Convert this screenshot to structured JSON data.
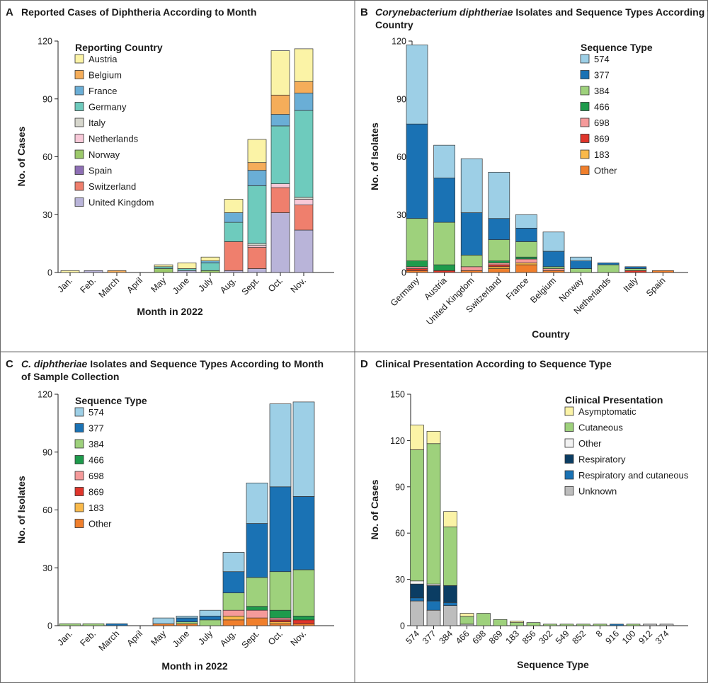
{
  "panels": {
    "A": {
      "letter": "A",
      "title": "Reported Cases of Diphtheria According to Month"
    },
    "B": {
      "letter": "B",
      "title_italic": "Corynebacterium diphtheriae",
      "title_rest": " Isolates and Sequence Types According to",
      "title_line2": "Country"
    },
    "C": {
      "letter": "C",
      "title_italic": "C. diphtheriae",
      "title_rest": " Isolates and Sequence Types According to Month",
      "title_line2": "of Sample Collection"
    },
    "D": {
      "letter": "D",
      "title": "Clinical Presentation According to Sequence Type"
    }
  },
  "chart_data": [
    {
      "id": "A",
      "type": "bar",
      "stacked": true,
      "title": "Reported Cases of Diphtheria According to Month",
      "xlabel": "Month in 2022",
      "ylabel": "No. of Cases",
      "ylim": [
        0,
        120
      ],
      "yticks": [
        0,
        30,
        60,
        90,
        120
      ],
      "legend_title": "Reporting Country",
      "categories": [
        "Jan.",
        "Feb.",
        "March",
        "April",
        "May",
        "June",
        "July",
        "Aug.",
        "Sept.",
        "Oct.",
        "Nov."
      ],
      "series": [
        {
          "name": "United Kingdom",
          "color": "#b9b4d9",
          "values": [
            0,
            1,
            0,
            0,
            0,
            1,
            0,
            1,
            2,
            31,
            22
          ]
        },
        {
          "name": "Switzerland",
          "color": "#ef7f6d",
          "values": [
            0,
            0,
            0,
            0,
            0,
            0,
            0,
            15,
            11,
            13,
            13
          ]
        },
        {
          "name": "Spain",
          "color": "#8e6fb5",
          "values": [
            0,
            0,
            0,
            0,
            0,
            0,
            0,
            0,
            0,
            0,
            0
          ]
        },
        {
          "name": "Norway",
          "color": "#9cc96b",
          "values": [
            0,
            0,
            0,
            0,
            2,
            0,
            1,
            0,
            0,
            0,
            0
          ]
        },
        {
          "name": "Netherlands",
          "color": "#f8c9d8",
          "values": [
            0,
            0,
            0,
            0,
            0,
            0,
            0,
            0,
            1,
            2,
            3
          ]
        },
        {
          "name": "Italy",
          "color": "#d6d6cc",
          "values": [
            0,
            0,
            0,
            0,
            0,
            0,
            0,
            0,
            1,
            0,
            1
          ]
        },
        {
          "name": "Germany",
          "color": "#6ecbbd",
          "values": [
            0,
            0,
            0,
            0,
            1,
            1,
            4,
            10,
            30,
            30,
            45
          ]
        },
        {
          "name": "France",
          "color": "#6aaed6",
          "values": [
            0,
            0,
            0,
            0,
            0,
            0,
            1,
            5,
            8,
            6,
            9
          ]
        },
        {
          "name": "Belgium",
          "color": "#f5ad5a",
          "values": [
            0,
            0,
            1,
            0,
            0,
            0,
            0,
            0,
            4,
            10,
            6
          ]
        },
        {
          "name": "Austria",
          "color": "#fbf3a6",
          "values": [
            1,
            0,
            0,
            0,
            1,
            3,
            2,
            7,
            12,
            23,
            17
          ]
        }
      ]
    },
    {
      "id": "B",
      "type": "bar",
      "stacked": true,
      "title": "Corynebacterium diphtheriae Isolates and Sequence Types According to Country",
      "xlabel": "Country",
      "ylabel": "No. of Isolates",
      "ylim": [
        0,
        120
      ],
      "yticks": [
        0,
        30,
        60,
        90,
        120
      ],
      "legend_title": "Sequence Type",
      "categories": [
        "Germany",
        "Austria",
        "United Kingdom",
        "Switzerland",
        "France",
        "Belgium",
        "Norway",
        "Netherlands",
        "Italy",
        "Spain"
      ],
      "series": [
        {
          "name": "Other",
          "color": "#f07f2c",
          "values": [
            1,
            0,
            1,
            2,
            4,
            1,
            0,
            0,
            0,
            1
          ]
        },
        {
          "name": "183",
          "color": "#f9b94a",
          "values": [
            0,
            0,
            0,
            1,
            1,
            0,
            0,
            0,
            0,
            0
          ]
        },
        {
          "name": "869",
          "color": "#e0352b",
          "values": [
            1,
            1,
            0,
            1,
            0,
            0,
            0,
            0,
            1,
            0
          ]
        },
        {
          "name": "698",
          "color": "#f59a9a",
          "values": [
            1,
            0,
            2,
            1,
            2,
            1,
            0,
            0,
            0,
            0
          ]
        },
        {
          "name": "466",
          "color": "#1e9b4c",
          "values": [
            3,
            3,
            0,
            1,
            1,
            0,
            0,
            0,
            0,
            0
          ]
        },
        {
          "name": "384",
          "color": "#9ed17c",
          "values": [
            22,
            22,
            6,
            11,
            8,
            1,
            2,
            4,
            1,
            0
          ]
        },
        {
          "name": "377",
          "color": "#1a72b4",
          "values": [
            49,
            23,
            22,
            11,
            7,
            8,
            4,
            1,
            1,
            0
          ]
        },
        {
          "name": "574",
          "color": "#9dcfe6",
          "values": [
            41,
            17,
            28,
            24,
            7,
            10,
            2,
            0,
            0,
            0
          ]
        }
      ]
    },
    {
      "id": "C",
      "type": "bar",
      "stacked": true,
      "title": "C. diphtheriae Isolates and Sequence Types According to Month of Sample Collection",
      "xlabel": "Month in 2022",
      "ylabel": "No. of Isolates",
      "ylim": [
        0,
        120
      ],
      "yticks": [
        0,
        30,
        60,
        90,
        120
      ],
      "legend_title": "Sequence Type",
      "categories": [
        "Jan.",
        "Feb.",
        "March",
        "April",
        "May",
        "June",
        "July",
        "Aug.",
        "Sept.",
        "Oct.",
        "Nov."
      ],
      "series": [
        {
          "name": "Other",
          "color": "#f07f2c",
          "values": [
            0,
            0,
            0,
            0,
            1,
            1,
            0,
            3,
            4,
            1,
            1
          ]
        },
        {
          "name": "183",
          "color": "#f9b94a",
          "values": [
            0,
            0,
            0,
            0,
            0,
            0,
            0,
            2,
            0,
            1,
            0
          ]
        },
        {
          "name": "869",
          "color": "#e0352b",
          "values": [
            0,
            0,
            0,
            0,
            0,
            0,
            0,
            0,
            0,
            1,
            2
          ]
        },
        {
          "name": "698",
          "color": "#f59a9a",
          "values": [
            0,
            0,
            0,
            0,
            0,
            0,
            0,
            3,
            4,
            1,
            0
          ]
        },
        {
          "name": "466",
          "color": "#1e9b4c",
          "values": [
            0,
            0,
            0,
            0,
            0,
            0,
            0,
            0,
            2,
            4,
            2
          ]
        },
        {
          "name": "384",
          "color": "#9ed17c",
          "values": [
            1,
            1,
            0,
            0,
            0,
            1,
            3,
            9,
            15,
            20,
            24
          ]
        },
        {
          "name": "377",
          "color": "#1a72b4",
          "values": [
            0,
            0,
            1,
            0,
            0,
            2,
            2,
            11,
            28,
            44,
            38
          ]
        },
        {
          "name": "574",
          "color": "#9dcfe6",
          "values": [
            0,
            0,
            0,
            0,
            3,
            1,
            3,
            10,
            21,
            43,
            49
          ]
        }
      ]
    },
    {
      "id": "D",
      "type": "bar",
      "stacked": true,
      "title": "Clinical Presentation According to Sequence Type",
      "xlabel": "Sequence Type",
      "ylabel": "No. of Cases",
      "ylim": [
        0,
        150
      ],
      "yticks": [
        0,
        30,
        60,
        90,
        120,
        150
      ],
      "legend_title": "Clinical Presentation",
      "categories": [
        "574",
        "377",
        "384",
        "466",
        "698",
        "869",
        "183",
        "856",
        "302",
        "549",
        "852",
        "8",
        "916",
        "100",
        "912",
        "374"
      ],
      "series": [
        {
          "name": "Unknown",
          "color": "#bdbdbd",
          "values": [
            16,
            10,
            13,
            1,
            0,
            0,
            0,
            0,
            0,
            0,
            0,
            0,
            0,
            0,
            1,
            1
          ]
        },
        {
          "name": "Respiratory and cutaneous",
          "color": "#1a72b4",
          "values": [
            2,
            6,
            2,
            0,
            0,
            0,
            0,
            0,
            0,
            0,
            0,
            0,
            1,
            0,
            0,
            0
          ]
        },
        {
          "name": "Respiratory",
          "color": "#0b3d63",
          "values": [
            9,
            10,
            11,
            0,
            0,
            0,
            0,
            0,
            0,
            0,
            0,
            0,
            0,
            0,
            0,
            0
          ]
        },
        {
          "name": "Other",
          "color": "#f2f2f2",
          "values": [
            2,
            1,
            0,
            0,
            0,
            0,
            0,
            0,
            0,
            0,
            0,
            0,
            0,
            0,
            0,
            0
          ]
        },
        {
          "name": "Cutaneous",
          "color": "#9ed17c",
          "values": [
            85,
            91,
            38,
            5,
            8,
            4,
            2,
            2,
            1,
            1,
            1,
            1,
            0,
            1,
            0,
            0
          ]
        },
        {
          "name": "Asymptomatic",
          "color": "#fbf3a6",
          "values": [
            16,
            8,
            10,
            2,
            0,
            0,
            1,
            0,
            0,
            0,
            0,
            0,
            0,
            0,
            0,
            0
          ]
        }
      ]
    }
  ]
}
